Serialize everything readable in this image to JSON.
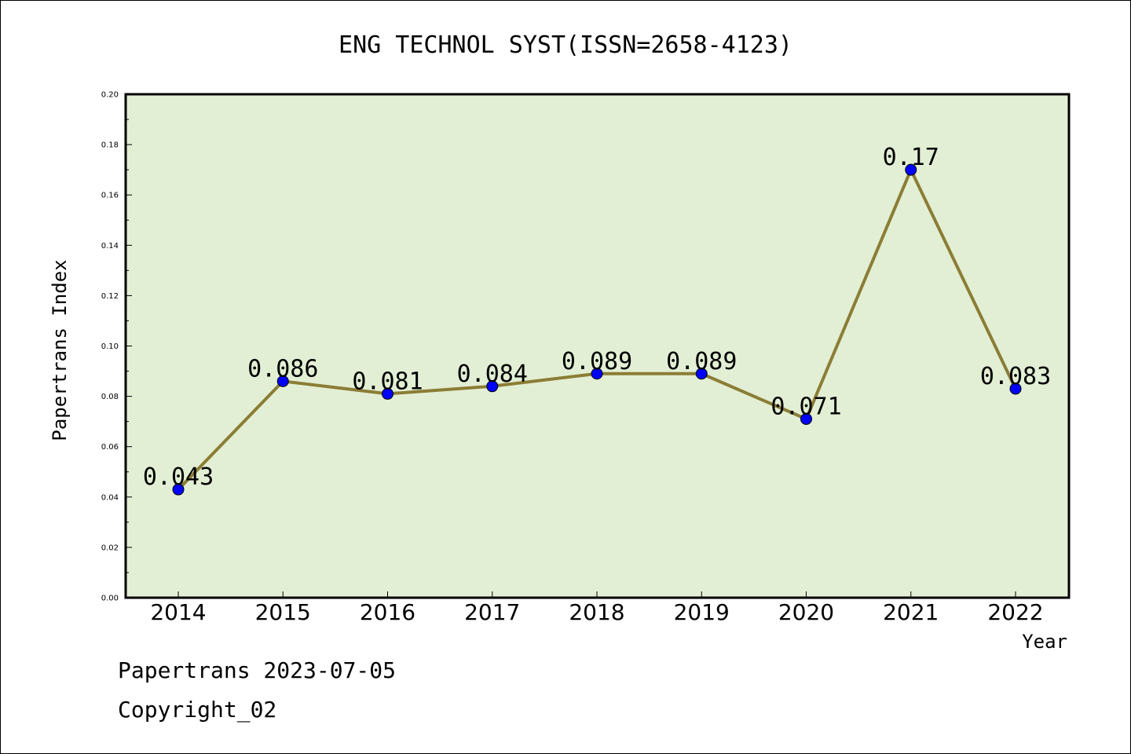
{
  "chart_data": {
    "type": "line",
    "title": "ENG TECHNOL SYST(ISSN=2658-4123)",
    "xlabel": "Year",
    "ylabel": "Papertrans Index",
    "categories": [
      "2014",
      "2015",
      "2016",
      "2017",
      "2018",
      "2019",
      "2020",
      "2021",
      "2022"
    ],
    "values": [
      0.043,
      0.086,
      0.081,
      0.084,
      0.089,
      0.089,
      0.071,
      0.17,
      0.083
    ],
    "data_labels": [
      "0.043",
      "0.086",
      "0.081",
      "0.084",
      "0.089",
      "0.089",
      "0.071",
      "0.17",
      "0.083"
    ],
    "ylim": [
      0,
      0.2
    ],
    "yticks": [
      "0.00",
      "0.02",
      "0.04",
      "0.06",
      "0.08",
      "0.10",
      "0.12",
      "0.14",
      "0.16",
      "0.18",
      "0.20"
    ],
    "grid": false,
    "colors": {
      "plot_background": "#e2efd4",
      "line": "#8b7d35",
      "marker": "#0000ff"
    }
  },
  "footer": {
    "line1": "Papertrans 2023-07-05",
    "line2": "Copyright_02"
  }
}
